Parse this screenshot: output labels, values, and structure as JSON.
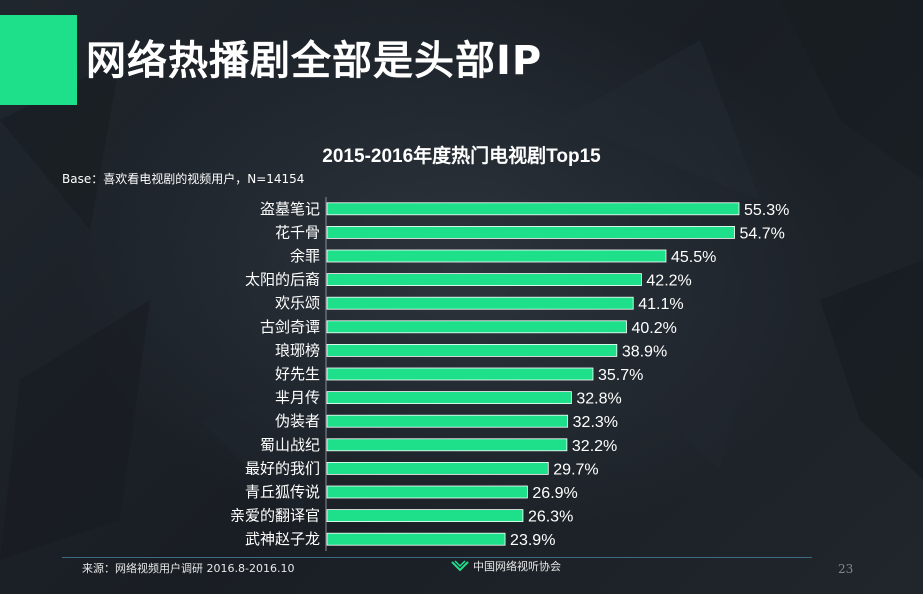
{
  "page": {
    "title": "网络热播剧全部是头部IP",
    "base_note": "Base：喜欢看电视剧的视频用户，N=14154",
    "footer_source": "来源：网络视频用户调研   2016.8-2016.10",
    "footer_org": "中国网络视听协会",
    "page_number": "23"
  },
  "colors": {
    "accent": "#1fe08a",
    "bar": "#1fe08a",
    "background": "#1b2127"
  },
  "chart_data": {
    "type": "bar",
    "orientation": "horizontal",
    "title": "2015-2016年度热门电视剧Top15",
    "categories": [
      "盗墓笔记",
      "花千骨",
      "余罪",
      "太阳的后裔",
      "欢乐颂",
      "古剑奇谭",
      "琅琊榜",
      "好先生",
      "芈月传",
      "伪装者",
      "蜀山战纪",
      "最好的我们",
      "青丘狐传说",
      "亲爱的翻译官",
      "武神赵子龙"
    ],
    "values": [
      55.3,
      54.7,
      45.5,
      42.2,
      41.1,
      40.2,
      38.9,
      35.7,
      32.8,
      32.3,
      32.2,
      29.7,
      26.9,
      26.3,
      23.9
    ],
    "value_labels": [
      "55.3%",
      "54.7%",
      "45.5%",
      "42.2%",
      "41.1%",
      "40.2%",
      "38.9%",
      "35.7%",
      "32.8%",
      "32.3%",
      "32.2%",
      "29.7%",
      "26.9%",
      "26.3%",
      "23.9%"
    ],
    "unit": "%",
    "grid": false,
    "legend": "none"
  }
}
